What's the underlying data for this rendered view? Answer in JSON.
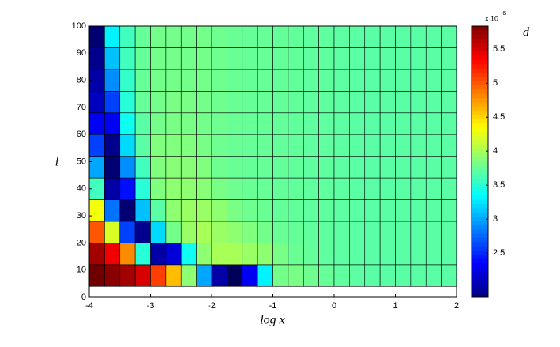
{
  "chart_data": {
    "type": "heatmap",
    "xlabel": "log x",
    "ylabel": "l",
    "x_bins": [
      -4,
      -3.75,
      -3.5,
      -3.25,
      -3,
      -2.75,
      -2.5,
      -2.25,
      -2,
      -1.75,
      -1.5,
      -1.25,
      -1,
      -0.75,
      -0.5,
      -0.25,
      0,
      0.25,
      0.5,
      0.75,
      1,
      1.25,
      1.5,
      1.75,
      2
    ],
    "y_bins": [
      4,
      12,
      20,
      28,
      36,
      44,
      52,
      60,
      68,
      76,
      84,
      92,
      100
    ],
    "values": [
      [
        5.9,
        5.8,
        5.7,
        5.5,
        5.1,
        4.6,
        3.9,
        3.0,
        2.0,
        1.7,
        2.3,
        3.3,
        3.8,
        3.82,
        3.78,
        3.75,
        3.72,
        3.71,
        3.7,
        3.7,
        3.7,
        3.7,
        3.7,
        3.7
      ],
      [
        5.7,
        5.4,
        4.8,
        3.5,
        2.0,
        2.2,
        3.4,
        3.9,
        4.0,
        4.0,
        3.95,
        3.9,
        3.82,
        3.76,
        3.74,
        3.72,
        3.71,
        3.7,
        3.7,
        3.7,
        3.7,
        3.7,
        3.7,
        3.7
      ],
      [
        5.0,
        4.2,
        2.6,
        1.9,
        3.2,
        3.8,
        3.95,
        4.0,
        3.95,
        3.9,
        3.85,
        3.8,
        3.76,
        3.74,
        3.73,
        3.72,
        3.71,
        3.7,
        3.7,
        3.7,
        3.7,
        3.7,
        3.7,
        3.7
      ],
      [
        4.3,
        2.8,
        1.8,
        3.1,
        3.7,
        3.9,
        3.95,
        3.95,
        3.9,
        3.82,
        3.78,
        3.76,
        3.74,
        3.73,
        3.72,
        3.72,
        3.71,
        3.7,
        3.7,
        3.7,
        3.7,
        3.7,
        3.7,
        3.7
      ],
      [
        3.6,
        2.0,
        2.4,
        3.5,
        3.85,
        3.9,
        3.9,
        3.88,
        3.82,
        3.78,
        3.76,
        3.75,
        3.74,
        3.73,
        3.72,
        3.72,
        3.71,
        3.7,
        3.7,
        3.7,
        3.7,
        3.7,
        3.7,
        3.7
      ],
      [
        3.0,
        1.8,
        2.9,
        3.6,
        3.85,
        3.88,
        3.88,
        3.85,
        3.78,
        3.76,
        3.75,
        3.75,
        3.74,
        3.73,
        3.72,
        3.72,
        3.71,
        3.7,
        3.7,
        3.7,
        3.7,
        3.7,
        3.7,
        3.7
      ],
      [
        2.6,
        1.9,
        3.2,
        3.7,
        3.85,
        3.85,
        3.85,
        3.82,
        3.78,
        3.76,
        3.75,
        3.75,
        3.74,
        3.73,
        3.72,
        3.72,
        3.71,
        3.7,
        3.7,
        3.7,
        3.7,
        3.7,
        3.7,
        3.7
      ],
      [
        2.3,
        2.3,
        3.4,
        3.7,
        3.8,
        3.82,
        3.82,
        3.8,
        3.78,
        3.76,
        3.75,
        3.75,
        3.74,
        3.73,
        3.72,
        3.72,
        3.71,
        3.7,
        3.7,
        3.7,
        3.7,
        3.7,
        3.7,
        3.7
      ],
      [
        2.1,
        2.6,
        3.5,
        3.75,
        3.8,
        3.82,
        3.82,
        3.8,
        3.78,
        3.76,
        3.75,
        3.75,
        3.74,
        3.73,
        3.72,
        3.72,
        3.71,
        3.7,
        3.7,
        3.7,
        3.7,
        3.7,
        3.7,
        3.7
      ],
      [
        2.0,
        2.9,
        3.55,
        3.75,
        3.8,
        3.8,
        3.8,
        3.8,
        3.78,
        3.76,
        3.75,
        3.75,
        3.74,
        3.73,
        3.72,
        3.72,
        3.71,
        3.7,
        3.7,
        3.7,
        3.7,
        3.7,
        3.7,
        3.7
      ],
      [
        1.9,
        3.1,
        3.6,
        3.75,
        3.8,
        3.8,
        3.8,
        3.8,
        3.78,
        3.76,
        3.75,
        3.75,
        3.74,
        3.73,
        3.72,
        3.72,
        3.71,
        3.7,
        3.7,
        3.7,
        3.7,
        3.7,
        3.7,
        3.7
      ],
      [
        1.8,
        3.3,
        3.6,
        3.75,
        3.8,
        3.8,
        3.8,
        3.8,
        3.78,
        3.76,
        3.75,
        3.75,
        3.74,
        3.73,
        3.72,
        3.72,
        3.71,
        3.7,
        3.7,
        3.7,
        3.7,
        3.7,
        3.7,
        3.7
      ]
    ],
    "xlim": [
      -4,
      2
    ],
    "xticks": [
      -4,
      -3,
      -2,
      -1,
      0,
      1,
      2
    ],
    "ylim": [
      0,
      100
    ],
    "yticks": [
      0,
      10,
      20,
      30,
      40,
      50,
      60,
      70,
      80,
      90,
      100
    ],
    "colormap": "jet",
    "clim": [
      1.85,
      5.84
    ],
    "cticks": [
      2.5,
      3,
      3.5,
      4,
      4.5,
      5,
      5.5
    ],
    "colorbar_label": "d",
    "colorbar_multiplier": "x 10",
    "colorbar_exponent": "-6"
  }
}
